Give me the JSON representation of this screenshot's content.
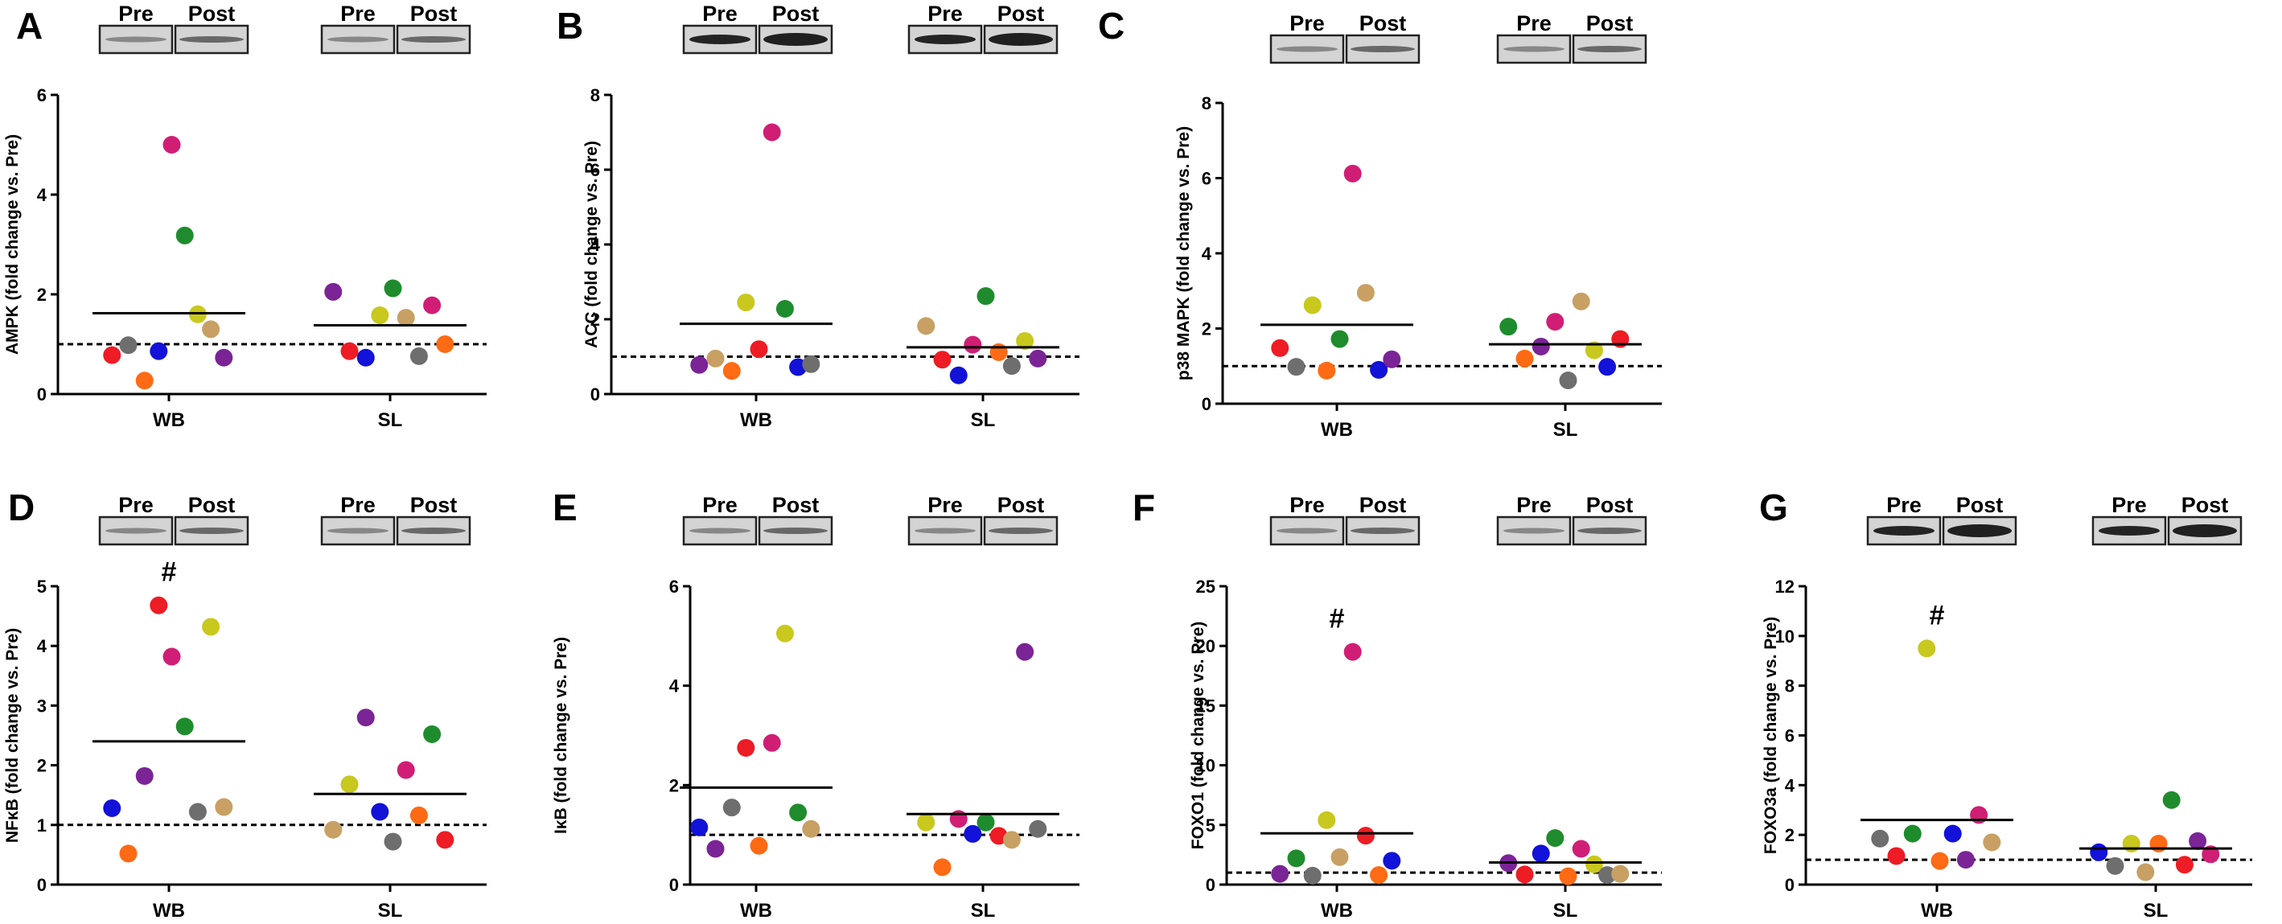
{
  "colors": {
    "red": "#ee1c24",
    "green": "#1e8c2c",
    "magenta": "#d01e75",
    "yellow": "#c8c81e",
    "tan": "#c8a064",
    "purple": "#7a2496",
    "blue": "#1212d8",
    "orange": "#ff6a14",
    "gray": "#6e6e6e"
  },
  "blot_labels": {
    "pre": "Pre",
    "post": "Post"
  },
  "chart_data": [
    {
      "id": "A",
      "type": "scatter",
      "ylabel": "AMPK (fold change vs. Pre)",
      "ylim": [
        0,
        6
      ],
      "yticks": [
        0,
        2,
        4,
        6
      ],
      "ytick_labels": [
        "0",
        "2",
        "4",
        "6"
      ],
      "categories": [
        "WB",
        "SL"
      ],
      "means": [
        1.62,
        1.38
      ],
      "baseline": 1,
      "annotations": [
        "",
        ""
      ],
      "points": [
        [
          {
            "y": 0.78,
            "c": "red"
          },
          {
            "y": 0.98,
            "c": "gray"
          },
          {
            "y": 0.27,
            "c": "orange"
          },
          {
            "y": 0.86,
            "c": "blue"
          },
          {
            "y": 5.0,
            "c": "magenta"
          },
          {
            "y": 3.18,
            "c": "green"
          },
          {
            "y": 1.6,
            "c": "yellow"
          },
          {
            "y": 1.3,
            "c": "tan"
          },
          {
            "y": 0.73,
            "c": "purple"
          }
        ],
        [
          {
            "y": 2.05,
            "c": "purple"
          },
          {
            "y": 0.86,
            "c": "red"
          },
          {
            "y": 0.73,
            "c": "blue"
          },
          {
            "y": 1.58,
            "c": "yellow"
          },
          {
            "y": 2.12,
            "c": "green"
          },
          {
            "y": 1.53,
            "c": "tan"
          },
          {
            "y": 0.76,
            "c": "gray"
          },
          {
            "y": 1.78,
            "c": "magenta"
          },
          {
            "y": 1.0,
            "c": "orange"
          }
        ]
      ]
    },
    {
      "id": "B",
      "type": "scatter",
      "ylabel": "ACC (fold change vs. Pre)",
      "ylim": [
        0,
        8
      ],
      "yticks": [
        0,
        2,
        4,
        6,
        8
      ],
      "ytick_labels": [
        "0",
        "2",
        "4",
        "6",
        "8"
      ],
      "categories": [
        "WB",
        "SL"
      ],
      "means": [
        1.88,
        1.25
      ],
      "baseline": 1,
      "annotations": [
        "",
        ""
      ],
      "points": [
        [
          {
            "y": 0.78,
            "c": "purple"
          },
          {
            "y": 0.95,
            "c": "tan"
          },
          {
            "y": 0.62,
            "c": "orange"
          },
          {
            "y": 2.45,
            "c": "yellow"
          },
          {
            "y": 1.2,
            "c": "red"
          },
          {
            "y": 7.0,
            "c": "magenta"
          },
          {
            "y": 2.28,
            "c": "green"
          },
          {
            "y": 0.72,
            "c": "blue"
          },
          {
            "y": 0.8,
            "c": "gray"
          }
        ],
        [
          {
            "y": 1.82,
            "c": "tan"
          },
          {
            "y": 0.92,
            "c": "red"
          },
          {
            "y": 0.5,
            "c": "blue"
          },
          {
            "y": 1.32,
            "c": "magenta"
          },
          {
            "y": 2.62,
            "c": "green"
          },
          {
            "y": 1.12,
            "c": "orange"
          },
          {
            "y": 0.75,
            "c": "gray"
          },
          {
            "y": 1.42,
            "c": "yellow"
          },
          {
            "y": 0.95,
            "c": "purple"
          }
        ]
      ]
    },
    {
      "id": "C",
      "type": "scatter",
      "ylabel": "p38 MAPK (fold change vs. Pre)",
      "ylim": [
        0,
        8
      ],
      "yticks": [
        0,
        2,
        4,
        6,
        8
      ],
      "ytick_labels": [
        "0",
        "2",
        "4",
        "6",
        "8"
      ],
      "categories": [
        "WB",
        "SL"
      ],
      "means": [
        2.1,
        1.58
      ],
      "baseline": 1,
      "annotations": [
        "",
        ""
      ],
      "points": [
        [
          {
            "y": 1.48,
            "c": "red"
          },
          {
            "y": 0.98,
            "c": "gray"
          },
          {
            "y": 2.62,
            "c": "yellow"
          },
          {
            "y": 0.88,
            "c": "orange"
          },
          {
            "y": 1.72,
            "c": "green"
          },
          {
            "y": 6.12,
            "c": "magenta"
          },
          {
            "y": 2.95,
            "c": "tan"
          },
          {
            "y": 0.9,
            "c": "blue"
          },
          {
            "y": 1.18,
            "c": "purple"
          }
        ],
        [
          {
            "y": 2.05,
            "c": "green"
          },
          {
            "y": 1.2,
            "c": "orange"
          },
          {
            "y": 1.52,
            "c": "purple"
          },
          {
            "y": 2.18,
            "c": "magenta"
          },
          {
            "y": 0.62,
            "c": "gray"
          },
          {
            "y": 2.72,
            "c": "tan"
          },
          {
            "y": 1.42,
            "c": "yellow"
          },
          {
            "y": 0.98,
            "c": "blue"
          },
          {
            "y": 1.72,
            "c": "red"
          }
        ]
      ]
    },
    {
      "id": "D",
      "type": "scatter",
      "ylabel": "NFκB (fold change vs. Pre)",
      "ylim": [
        0,
        5
      ],
      "yticks": [
        0,
        1,
        2,
        3,
        4,
        5
      ],
      "ytick_labels": [
        "0",
        "1",
        "2",
        "3",
        "4",
        "5"
      ],
      "categories": [
        "WB",
        "SL"
      ],
      "means": [
        2.4,
        1.52
      ],
      "baseline": 1,
      "annotations": [
        "#",
        ""
      ],
      "points": [
        [
          {
            "y": 1.28,
            "c": "blue"
          },
          {
            "y": 0.52,
            "c": "orange"
          },
          {
            "y": 1.82,
            "c": "purple"
          },
          {
            "y": 4.68,
            "c": "red"
          },
          {
            "y": 3.82,
            "c": "magenta"
          },
          {
            "y": 2.65,
            "c": "green"
          },
          {
            "y": 1.22,
            "c": "gray"
          },
          {
            "y": 4.32,
            "c": "yellow"
          },
          {
            "y": 1.3,
            "c": "tan"
          }
        ],
        [
          {
            "y": 0.92,
            "c": "tan"
          },
          {
            "y": 1.68,
            "c": "yellow"
          },
          {
            "y": 2.8,
            "c": "purple"
          },
          {
            "y": 1.22,
            "c": "blue"
          },
          {
            "y": 0.72,
            "c": "gray"
          },
          {
            "y": 1.92,
            "c": "magenta"
          },
          {
            "y": 1.16,
            "c": "orange"
          },
          {
            "y": 2.52,
            "c": "green"
          },
          {
            "y": 0.75,
            "c": "red"
          }
        ]
      ]
    },
    {
      "id": "E",
      "type": "scatter",
      "ylabel": "IκB (fold change vs. Pre)",
      "ylim": [
        0,
        6
      ],
      "yticks": [
        0,
        2,
        4,
        6
      ],
      "ytick_labels": [
        "0",
        "2",
        "4",
        "6"
      ],
      "categories": [
        "WB",
        "SL"
      ],
      "means": [
        1.95,
        1.42
      ],
      "baseline": 1,
      "annotations": [
        "",
        ""
      ],
      "points": [
        [
          {
            "y": 1.15,
            "c": "blue"
          },
          {
            "y": 0.72,
            "c": "purple"
          },
          {
            "y": 1.55,
            "c": "gray"
          },
          {
            "y": 2.75,
            "c": "red"
          },
          {
            "y": 0.78,
            "c": "orange"
          },
          {
            "y": 2.85,
            "c": "magenta"
          },
          {
            "y": 5.05,
            "c": "yellow"
          },
          {
            "y": 1.45,
            "c": "green"
          },
          {
            "y": 1.12,
            "c": "tan"
          }
        ],
        [
          {
            "y": 1.25,
            "c": "yellow"
          },
          {
            "y": 0.35,
            "c": "orange"
          },
          {
            "y": 1.32,
            "c": "magenta"
          },
          {
            "y": 1.02,
            "c": "blue"
          },
          {
            "y": 1.25,
            "c": "green"
          },
          {
            "y": 0.98,
            "c": "red"
          },
          {
            "y": 0.9,
            "c": "tan"
          },
          {
            "y": 4.68,
            "c": "purple"
          },
          {
            "y": 1.12,
            "c": "gray"
          }
        ]
      ]
    },
    {
      "id": "F",
      "type": "scatter",
      "ylabel": "FOXO1 (fold change vs. Pre)",
      "ylim": [
        0,
        25
      ],
      "yticks": [
        0,
        5,
        10,
        15,
        20,
        25
      ],
      "ytick_labels": [
        "0",
        "5",
        "10",
        "15",
        "20",
        "25"
      ],
      "categories": [
        "WB",
        "SL"
      ],
      "means": [
        4.3,
        1.85
      ],
      "baseline": 1,
      "annotations": [
        "#",
        ""
      ],
      "points": [
        [
          {
            "y": 0.9,
            "c": "purple"
          },
          {
            "y": 2.2,
            "c": "green"
          },
          {
            "y": 0.75,
            "c": "gray"
          },
          {
            "y": 5.4,
            "c": "yellow"
          },
          {
            "y": 2.3,
            "c": "tan"
          },
          {
            "y": 19.5,
            "c": "magenta"
          },
          {
            "y": 4.1,
            "c": "red"
          },
          {
            "y": 0.8,
            "c": "orange"
          },
          {
            "y": 2.0,
            "c": "blue"
          }
        ],
        [
          {
            "y": 1.8,
            "c": "purple"
          },
          {
            "y": 0.85,
            "c": "red"
          },
          {
            "y": 2.6,
            "c": "blue"
          },
          {
            "y": 3.9,
            "c": "green"
          },
          {
            "y": 0.7,
            "c": "orange"
          },
          {
            "y": 3.0,
            "c": "magenta"
          },
          {
            "y": 1.7,
            "c": "yellow"
          },
          {
            "y": 0.8,
            "c": "gray"
          },
          {
            "y": 0.9,
            "c": "tan"
          }
        ]
      ]
    },
    {
      "id": "G",
      "type": "scatter",
      "ylabel": "FOXO3a (fold change vs. Pre)",
      "ylim": [
        0,
        12
      ],
      "yticks": [
        0,
        2,
        4,
        6,
        8,
        10,
        12
      ],
      "ytick_labels": [
        "0",
        "2",
        "4",
        "6",
        "8",
        "10",
        "12"
      ],
      "categories": [
        "WB",
        "SL"
      ],
      "means": [
        2.6,
        1.45
      ],
      "baseline": 1,
      "annotations": [
        "#",
        ""
      ],
      "points": [
        [
          {
            "y": 1.85,
            "c": "gray"
          },
          {
            "y": 1.15,
            "c": "red"
          },
          {
            "y": 2.05,
            "c": "green"
          },
          {
            "y": 9.5,
            "c": "yellow"
          },
          {
            "y": 0.95,
            "c": "orange"
          },
          {
            "y": 2.05,
            "c": "blue"
          },
          {
            "y": 1.0,
            "c": "purple"
          },
          {
            "y": 2.8,
            "c": "magenta"
          },
          {
            "y": 1.7,
            "c": "tan"
          }
        ],
        [
          {
            "y": 1.3,
            "c": "blue"
          },
          {
            "y": 0.75,
            "c": "gray"
          },
          {
            "y": 1.65,
            "c": "yellow"
          },
          {
            "y": 0.5,
            "c": "tan"
          },
          {
            "y": 1.65,
            "c": "orange"
          },
          {
            "y": 3.4,
            "c": "green"
          },
          {
            "y": 0.8,
            "c": "red"
          },
          {
            "y": 1.75,
            "c": "purple"
          },
          {
            "y": 1.22,
            "c": "magenta"
          }
        ]
      ]
    }
  ]
}
